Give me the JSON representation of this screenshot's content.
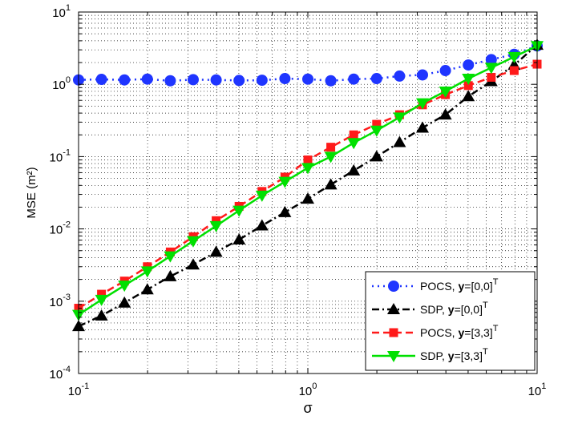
{
  "chart_data": {
    "type": "line",
    "xscale": "log",
    "yscale": "log",
    "xlim": [
      0.1,
      10
    ],
    "ylim": [
      0.0001,
      10
    ],
    "xlabel": "σ",
    "ylabel": "MSE (m²)",
    "grid": true,
    "legend_position": "bottom-right",
    "x_ticks": [
      {
        "value": 0.1,
        "base": "10",
        "exp": "-1"
      },
      {
        "value": 1,
        "base": "10",
        "exp": "0"
      },
      {
        "value": 10,
        "base": "10",
        "exp": "1"
      }
    ],
    "y_ticks": [
      {
        "value": 0.0001,
        "base": "10",
        "exp": "-4"
      },
      {
        "value": 0.001,
        "base": "10",
        "exp": "-3"
      },
      {
        "value": 0.01,
        "base": "10",
        "exp": "-2"
      },
      {
        "value": 0.1,
        "base": "10",
        "exp": "-1"
      },
      {
        "value": 1,
        "base": "10",
        "exp": "0"
      },
      {
        "value": 10,
        "base": "10",
        "exp": "1"
      }
    ],
    "x": [
      0.1,
      0.1259,
      0.1585,
      0.1995,
      0.2512,
      0.3162,
      0.3981,
      0.5012,
      0.631,
      0.7943,
      1.0,
      1.2589,
      1.5849,
      1.9953,
      2.5119,
      3.1623,
      3.9811,
      5.0119,
      6.3096,
      7.9433,
      10.0
    ],
    "series": [
      {
        "legend_prefix": "POCS,  ",
        "legend_bold": "y",
        "legend_suffix": "=[0,0]",
        "legend_sup": "T",
        "color": "#1f35ff",
        "dash": "2,5",
        "marker": "circle",
        "values": [
          1.15,
          1.17,
          1.15,
          1.18,
          1.12,
          1.16,
          1.15,
          1.13,
          1.14,
          1.2,
          1.18,
          1.12,
          1.18,
          1.2,
          1.3,
          1.35,
          1.55,
          1.85,
          2.2,
          2.6,
          3.4
        ]
      },
      {
        "legend_prefix": "SDP,  ",
        "legend_bold": "y",
        "legend_suffix": "=[0,0]",
        "legend_sup": "T",
        "color": "#000000",
        "dash": "9,4,2,4",
        "marker": "triangle-up",
        "values": [
          0.00045,
          0.00063,
          0.00095,
          0.00145,
          0.0022,
          0.0032,
          0.0048,
          0.0071,
          0.0111,
          0.017,
          0.026,
          0.041,
          0.064,
          0.1,
          0.158,
          0.25,
          0.38,
          0.68,
          1.1,
          1.85,
          3.5
        ]
      },
      {
        "legend_prefix": "POCS,  ",
        "legend_bold": "y",
        "legend_suffix": "=[3,3]",
        "legend_sup": "T",
        "color": "#ff1a1a",
        "dash": "9,5",
        "marker": "square",
        "values": [
          0.0008,
          0.00125,
          0.0019,
          0.003,
          0.0048,
          0.0078,
          0.013,
          0.0205,
          0.033,
          0.052,
          0.09,
          0.135,
          0.2,
          0.28,
          0.38,
          0.52,
          0.72,
          0.96,
          1.25,
          1.55,
          1.9
        ]
      },
      {
        "legend_prefix": "SDP,  ",
        "legend_bold": "y",
        "legend_suffix": "=[3,3]",
        "legend_sup": "T",
        "color": "#00e000",
        "dash": "",
        "marker": "triangle-down",
        "values": [
          0.00065,
          0.00105,
          0.00165,
          0.0026,
          0.0042,
          0.0068,
          0.011,
          0.018,
          0.029,
          0.045,
          0.07,
          0.1,
          0.155,
          0.23,
          0.35,
          0.55,
          0.8,
          1.2,
          1.7,
          2.4,
          3.4
        ]
      }
    ]
  }
}
